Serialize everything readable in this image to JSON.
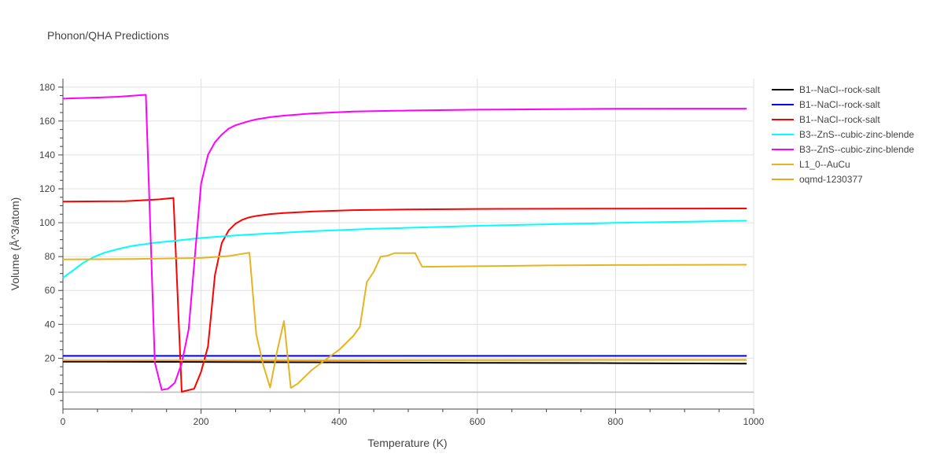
{
  "chart_data": {
    "type": "line",
    "title": "Phonon/QHA Predictions",
    "xlabel": "Temperature (K)",
    "ylabel": "Volume (Å^3/atom)",
    "xlim": [
      0,
      1000
    ],
    "ylim": [
      -10,
      185
    ],
    "xticks": [
      0,
      200,
      400,
      600,
      800,
      1000
    ],
    "yticks": [
      0,
      20,
      40,
      60,
      80,
      100,
      120,
      140,
      160,
      180
    ],
    "grid": true,
    "legend_position": "right",
    "series": [
      {
        "name": "B1--NaCl--rock-salt",
        "color": "#000000",
        "points": [
          [
            0,
            18.0
          ],
          [
            200,
            17.8
          ],
          [
            400,
            17.6
          ],
          [
            600,
            17.3
          ],
          [
            800,
            17.1
          ],
          [
            990,
            16.8
          ]
        ]
      },
      {
        "name": "B1--NaCl--rock-salt",
        "color": "#0000ff",
        "points": [
          [
            0,
            21.4
          ],
          [
            200,
            21.4
          ],
          [
            400,
            21.4
          ],
          [
            600,
            21.4
          ],
          [
            800,
            21.4
          ],
          [
            990,
            21.4
          ]
        ]
      },
      {
        "name": "B1--NaCl--rock-salt",
        "color": "#ff0000",
        "points": [
          [
            0,
            112.5
          ],
          [
            90,
            112.7
          ],
          [
            120,
            113.3
          ],
          [
            140,
            113.8
          ],
          [
            160,
            114.6
          ],
          [
            172,
            0.2
          ],
          [
            190,
            2.0
          ],
          [
            200,
            12.0
          ],
          [
            210,
            27.0
          ],
          [
            220,
            69.0
          ],
          [
            230,
            88.0
          ],
          [
            240,
            95.5
          ],
          [
            250,
            99.5
          ],
          [
            260,
            101.8
          ],
          [
            270,
            103.2
          ],
          [
            280,
            104.0
          ],
          [
            300,
            105.1
          ],
          [
            320,
            105.7
          ],
          [
            360,
            106.6
          ],
          [
            420,
            107.4
          ],
          [
            500,
            107.8
          ],
          [
            600,
            108.1
          ],
          [
            800,
            108.3
          ],
          [
            990,
            108.4
          ]
        ]
      },
      {
        "name": "B3--ZnS--cubic-zinc-blende",
        "color": "#00ffff",
        "points": [
          [
            0,
            67.5
          ],
          [
            15,
            72.0
          ],
          [
            30,
            76.5
          ],
          [
            45,
            79.8
          ],
          [
            60,
            82.3
          ],
          [
            80,
            84.5
          ],
          [
            100,
            86.3
          ],
          [
            130,
            88.0
          ],
          [
            160,
            89.2
          ],
          [
            200,
            91.0
          ],
          [
            260,
            92.8
          ],
          [
            350,
            94.8
          ],
          [
            450,
            96.4
          ],
          [
            600,
            98.2
          ],
          [
            800,
            99.9
          ],
          [
            990,
            101.2
          ]
        ]
      },
      {
        "name": "B3--ZnS--cubic-zinc-blende",
        "color": "#ff00ff",
        "points": [
          [
            0,
            173.2
          ],
          [
            40,
            173.7
          ],
          [
            80,
            174.3
          ],
          [
            100,
            174.9
          ],
          [
            120,
            175.5
          ],
          [
            133,
            17.5
          ],
          [
            143,
            1.3
          ],
          [
            152,
            2.0
          ],
          [
            162,
            5.5
          ],
          [
            172,
            17.0
          ],
          [
            182,
            37.0
          ],
          [
            192,
            85.0
          ],
          [
            200,
            123.0
          ],
          [
            210,
            140.0
          ],
          [
            220,
            147.5
          ],
          [
            230,
            152.0
          ],
          [
            240,
            155.5
          ],
          [
            250,
            157.5
          ],
          [
            260,
            158.8
          ],
          [
            270,
            160.0
          ],
          [
            280,
            161.0
          ],
          [
            300,
            162.3
          ],
          [
            320,
            163.2
          ],
          [
            360,
            164.5
          ],
          [
            420,
            165.6
          ],
          [
            500,
            166.2
          ],
          [
            600,
            166.7
          ],
          [
            800,
            167.2
          ],
          [
            990,
            167.3
          ]
        ]
      },
      {
        "name": "L1_0--AuCu",
        "color": "#e6b422",
        "points": [
          [
            0,
            78.3
          ],
          [
            100,
            78.6
          ],
          [
            200,
            79.2
          ],
          [
            240,
            80.3
          ],
          [
            262,
            81.8
          ],
          [
            270,
            82.3
          ],
          [
            280,
            34.0
          ],
          [
            290,
            16.0
          ],
          [
            300,
            2.7
          ],
          [
            310,
            24.0
          ],
          [
            320,
            42.0
          ],
          [
            330,
            2.5
          ],
          [
            340,
            5.0
          ],
          [
            360,
            13.0
          ],
          [
            380,
            19.0
          ],
          [
            400,
            25.0
          ],
          [
            420,
            33.0
          ],
          [
            430,
            38.5
          ],
          [
            440,
            65.0
          ],
          [
            450,
            71.0
          ],
          [
            460,
            80.0
          ],
          [
            470,
            80.5
          ],
          [
            480,
            82.0
          ],
          [
            510,
            82.0
          ],
          [
            520,
            74.0
          ],
          [
            600,
            74.3
          ],
          [
            700,
            74.8
          ],
          [
            800,
            75.0
          ],
          [
            990,
            75.2
          ]
        ]
      },
      {
        "name": "oqmd-1230377",
        "color": "#f2a60f",
        "points": [
          [
            0,
            18.8
          ],
          [
            200,
            18.8
          ],
          [
            400,
            18.8
          ],
          [
            600,
            18.9
          ],
          [
            800,
            19.0
          ],
          [
            990,
            19.0
          ]
        ]
      }
    ]
  }
}
